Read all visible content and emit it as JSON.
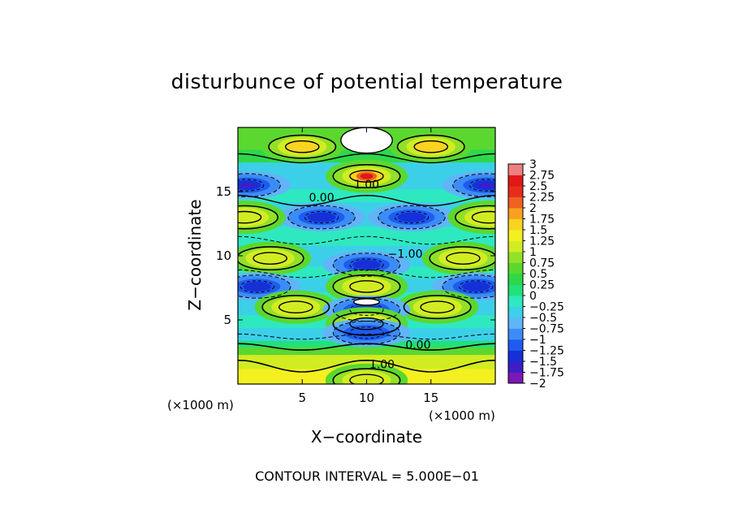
{
  "chart_data": {
    "type": "heatmap",
    "title": "disturbunce of potential temperature",
    "xlabel": "X−coordinate",
    "ylabel": "Z−coordinate",
    "x_unit_label": "(×1000 m)",
    "y_unit_label": "(×1000 m)",
    "xlim": [
      0,
      20
    ],
    "ylim": [
      0,
      20
    ],
    "x_ticks": [
      5,
      10,
      15
    ],
    "y_ticks": [
      5,
      10,
      15
    ],
    "x_tick_labels": [
      "5",
      "10",
      "15"
    ],
    "y_tick_labels": [
      "5",
      "10",
      "15"
    ],
    "colorbar": {
      "min": -2,
      "max": 3,
      "step": 0.25,
      "labels": [
        "3",
        "2.75",
        "2.5",
        "2.25",
        "2",
        "1.75",
        "1.5",
        "1.25",
        "1",
        "0.75",
        "0.5",
        "0.25",
        "0",
        "−0.25",
        "−0.5",
        "−0.75",
        "−1",
        "−1.25",
        "−1.5",
        "−1.75",
        "−2"
      ],
      "colors": [
        "#7a18b8",
        "#3c1ec8",
        "#1630d8",
        "#1e5cf0",
        "#3c8cf8",
        "#62b4f8",
        "#3cd0e8",
        "#2ee8c0",
        "#22e07a",
        "#2ed84a",
        "#5ad830",
        "#92e028",
        "#d2ec22",
        "#f4f020",
        "#f8d420",
        "#f8a020",
        "#f06020",
        "#e82c1c",
        "#e01818",
        "#f08080"
      ]
    },
    "contour_labels": [
      {
        "text": "0.00",
        "x": 6.5,
        "z": 14.5
      },
      {
        "text": "1.00",
        "x": 10.0,
        "z": 15.5
      },
      {
        "text": "−1.00",
        "x": 13.0,
        "z": 10.1
      },
      {
        "text": "0.00",
        "x": 14.0,
        "z": 3.0
      },
      {
        "text": "1.00",
        "x": 11.2,
        "z": 1.5
      }
    ],
    "features": [
      {
        "kind": "max",
        "x": 10,
        "z": 16.2,
        "value": 2.5
      },
      {
        "kind": "max",
        "x": 5,
        "z": 18.5,
        "value": 1.75
      },
      {
        "kind": "max",
        "x": 15,
        "z": 18.5,
        "value": 1.75
      },
      {
        "kind": "min",
        "x": 6.5,
        "z": 13.0,
        "value": -1.5
      },
      {
        "kind": "min",
        "x": 13.5,
        "z": 13.0,
        "value": -1.5
      },
      {
        "kind": "min",
        "x": 10,
        "z": 9.3,
        "value": -1.5
      },
      {
        "kind": "max",
        "x": 2.5,
        "z": 9.8,
        "value": 1.0
      },
      {
        "kind": "max",
        "x": 17.5,
        "z": 9.8,
        "value": 1.0
      },
      {
        "kind": "max",
        "x": 10,
        "z": 7.6,
        "value": 1.0
      },
      {
        "kind": "min",
        "x": 1.5,
        "z": 7.6,
        "value": -1.5
      },
      {
        "kind": "min",
        "x": 18.5,
        "z": 7.6,
        "value": -1.5
      },
      {
        "kind": "max",
        "x": 4.5,
        "z": 6.0,
        "value": 1.0
      },
      {
        "kind": "max",
        "x": 15.5,
        "z": 6.0,
        "value": 1.0
      },
      {
        "kind": "min",
        "x": 10,
        "z": 5.8,
        "value": -1.5
      },
      {
        "kind": "max",
        "x": 10,
        "z": 4.7,
        "value": 1.0
      },
      {
        "kind": "min",
        "x": 10,
        "z": 4.0,
        "value": -1.25
      },
      {
        "kind": "min",
        "x": 0.7,
        "z": 15.5,
        "value": -1.75
      },
      {
        "kind": "min",
        "x": 19.3,
        "z": 15.5,
        "value": -1.75
      },
      {
        "kind": "max",
        "x": 0.5,
        "z": 13.0,
        "value": 1.0
      },
      {
        "kind": "max",
        "x": 19.5,
        "z": 13.0,
        "value": 1.0
      },
      {
        "kind": "max",
        "x": 10,
        "z": 0.3,
        "value": 1.25
      }
    ],
    "masked_regions": [
      {
        "x": 10,
        "z": 19.0
      },
      {
        "x": 10,
        "z": 6.4
      }
    ]
  },
  "caption": "CONTOUR INTERVAL = 5.000E−01"
}
